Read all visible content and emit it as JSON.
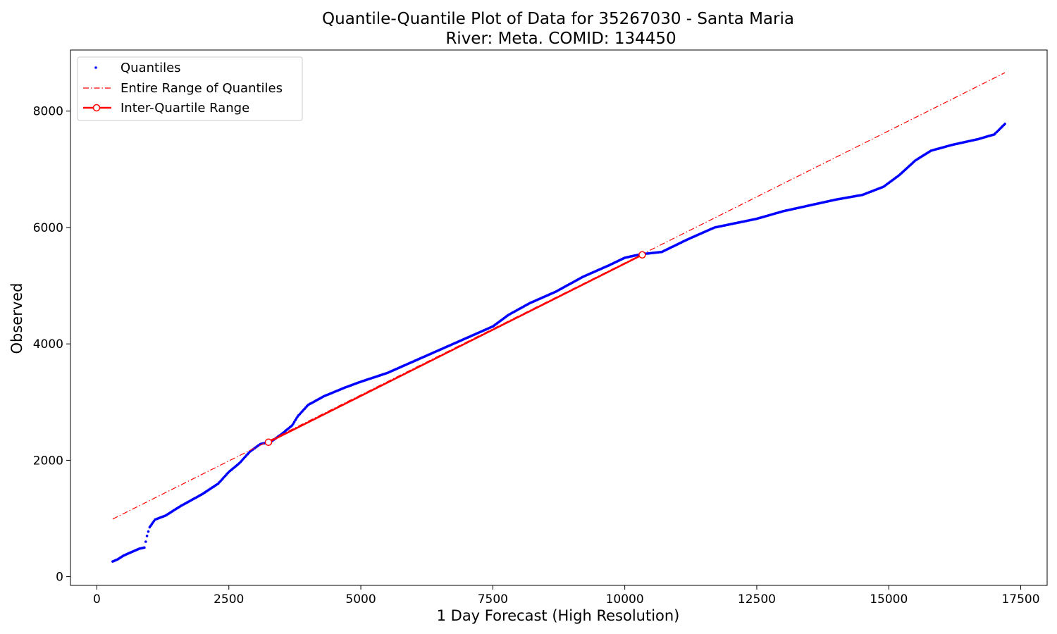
{
  "chart_data": {
    "type": "scatter",
    "title": "Quantile-Quantile Plot of Data for 35267030 - Santa Maria",
    "subtitle": "River: Meta. COMID: 134450",
    "xlabel": "1 Day Forecast (High Resolution)",
    "ylabel": "Observed",
    "xlim": [
      -500,
      18000
    ],
    "ylim": [
      -150,
      9050
    ],
    "xticks": [
      0,
      2500,
      5000,
      7500,
      10000,
      12500,
      15000,
      17500
    ],
    "yticks": [
      0,
      2000,
      4000,
      6000,
      8000
    ],
    "legend_position": "top-left",
    "grid": false,
    "colors": {
      "quantiles": "#0000ff",
      "reference": "#ff0000"
    },
    "series": [
      {
        "name": "Quantiles",
        "marker": "point",
        "curve": [
          [
            300,
            260
          ],
          [
            400,
            300
          ],
          [
            500,
            360
          ],
          [
            650,
            420
          ],
          [
            800,
            480
          ],
          [
            900,
            500
          ],
          [
            950,
            700
          ],
          [
            1000,
            850
          ],
          [
            1100,
            980
          ],
          [
            1300,
            1050
          ],
          [
            1600,
            1220
          ],
          [
            2000,
            1420
          ],
          [
            2300,
            1600
          ],
          [
            2500,
            1800
          ],
          [
            2700,
            1950
          ],
          [
            2900,
            2150
          ],
          [
            3100,
            2280
          ],
          [
            3300,
            2320
          ],
          [
            3500,
            2450
          ],
          [
            3700,
            2600
          ],
          [
            3800,
            2750
          ],
          [
            4000,
            2950
          ],
          [
            4300,
            3100
          ],
          [
            4700,
            3250
          ],
          [
            5000,
            3350
          ],
          [
            5500,
            3500
          ],
          [
            6000,
            3700
          ],
          [
            6500,
            3900
          ],
          [
            7000,
            4100
          ],
          [
            7500,
            4300
          ],
          [
            7800,
            4500
          ],
          [
            8200,
            4700
          ],
          [
            8700,
            4900
          ],
          [
            9200,
            5150
          ],
          [
            9700,
            5350
          ],
          [
            10000,
            5480
          ],
          [
            10300,
            5540
          ],
          [
            10700,
            5580
          ],
          [
            11200,
            5800
          ],
          [
            11700,
            6000
          ],
          [
            12500,
            6150
          ],
          [
            13000,
            6280
          ],
          [
            13500,
            6380
          ],
          [
            14000,
            6480
          ],
          [
            14500,
            6560
          ],
          [
            14900,
            6700
          ],
          [
            15200,
            6900
          ],
          [
            15500,
            7150
          ],
          [
            15800,
            7320
          ],
          [
            16200,
            7420
          ],
          [
            16700,
            7520
          ],
          [
            17000,
            7600
          ],
          [
            17200,
            7780
          ]
        ]
      },
      {
        "name": "Entire Range of Quantiles",
        "style": "dash-dot",
        "x": [
          300,
          17200
        ],
        "y": [
          990,
          8660
        ]
      },
      {
        "name": "Inter-Quartile Range",
        "style": "solid",
        "marker": "open-circle",
        "x": [
          3250,
          10330
        ],
        "y": [
          2310,
          5530
        ]
      }
    ]
  }
}
